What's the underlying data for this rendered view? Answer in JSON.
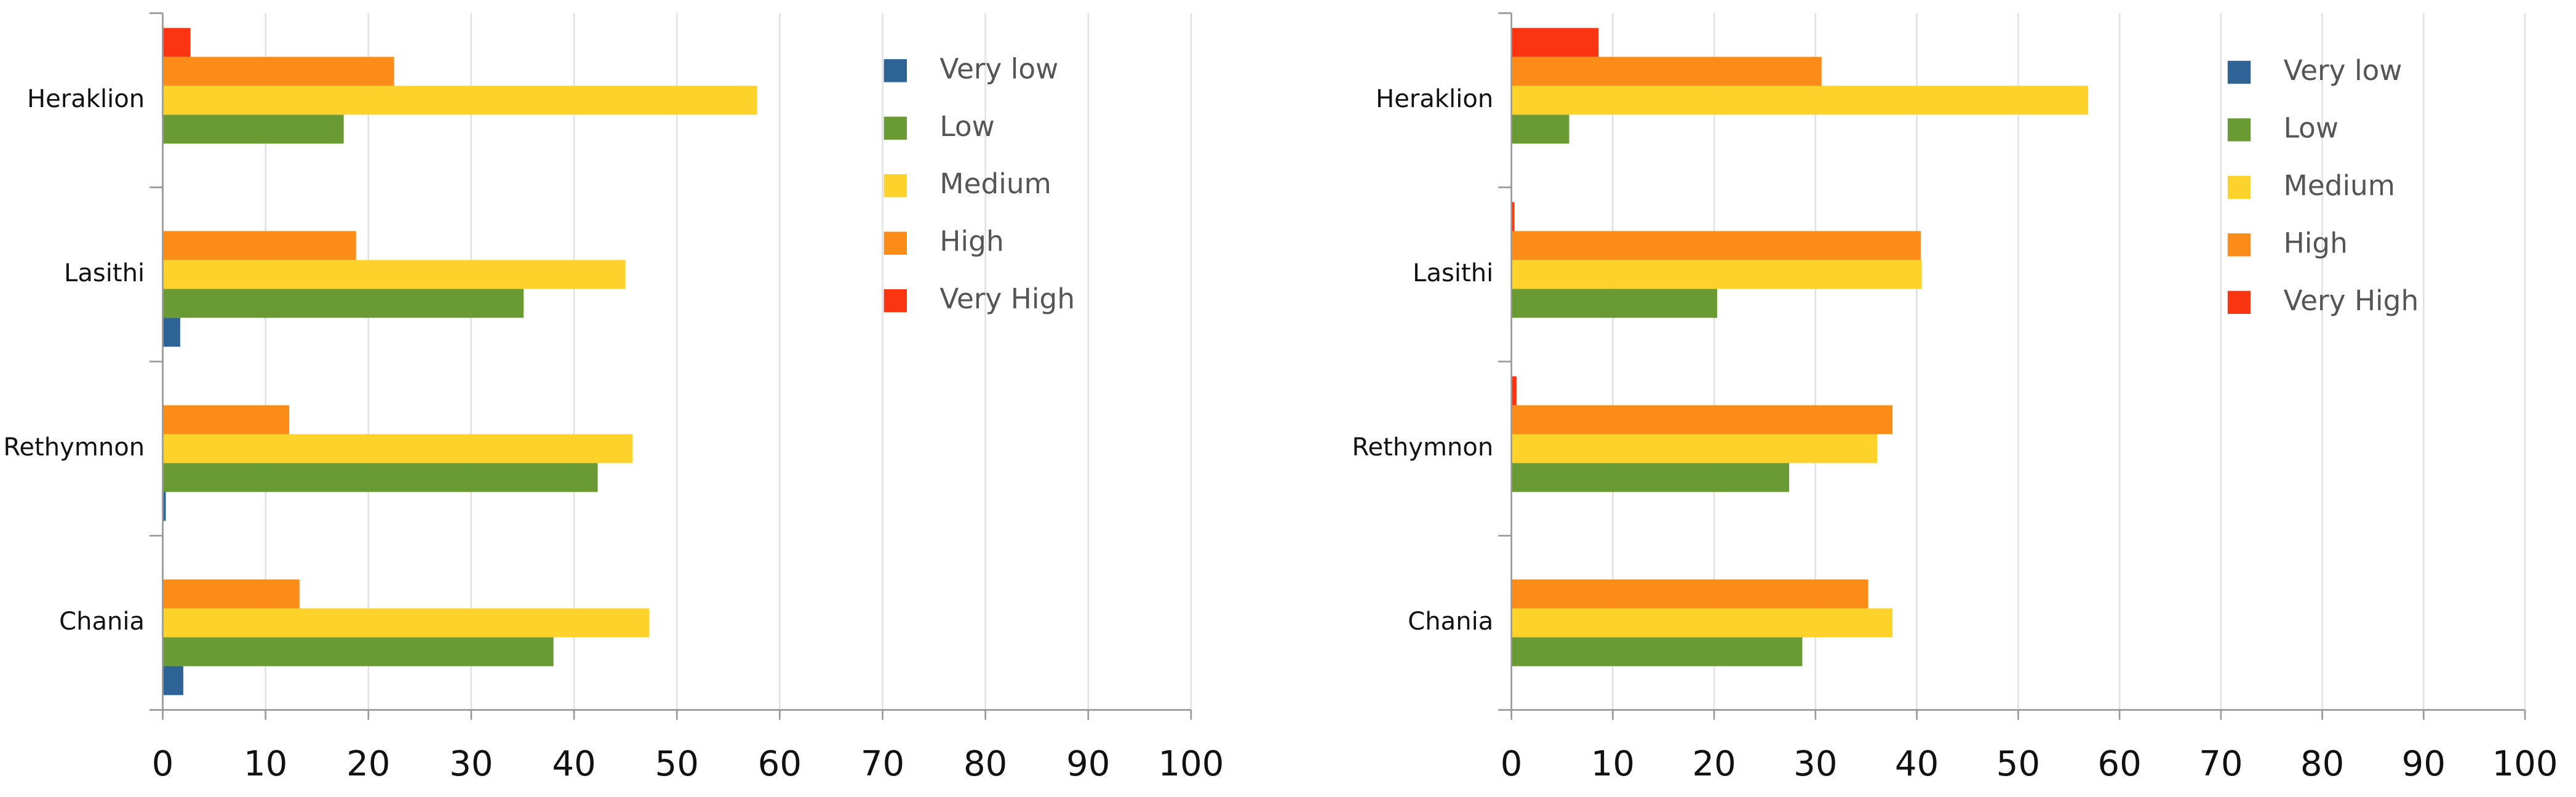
{
  "chart_data": [
    {
      "type": "bar",
      "orientation": "horizontal",
      "categories": [
        "Heraklion",
        "Lasithi",
        "Rethymnon",
        "Chania"
      ],
      "series": [
        {
          "name": "Very low",
          "color": "#2e6396",
          "values": [
            0,
            1.7,
            0.3,
            2
          ]
        },
        {
          "name": "Low",
          "color": "#6a9a34",
          "values": [
            17.6,
            35.1,
            42.3,
            38
          ]
        },
        {
          "name": "Medium",
          "color": "#fdd22a",
          "values": [
            57.8,
            45,
            45.7,
            47.3
          ]
        },
        {
          "name": "High",
          "color": "#fb8c18",
          "values": [
            22.5,
            18.8,
            12.3,
            13.3
          ]
        },
        {
          "name": "Very High",
          "color": "#fb3512",
          "values": [
            2.7,
            0,
            0,
            0
          ]
        }
      ],
      "xlim": [
        0,
        100
      ],
      "xticks": [
        0,
        10,
        20,
        30,
        40,
        50,
        60,
        70,
        80,
        90,
        100
      ],
      "grid": true,
      "legend": "upper right"
    },
    {
      "type": "bar",
      "orientation": "horizontal",
      "categories": [
        "Heraklion",
        "Lasithi",
        "Rethymnon",
        "Chania"
      ],
      "series": [
        {
          "name": "Very low",
          "color": "#2e6396",
          "values": [
            0,
            0,
            0,
            0
          ]
        },
        {
          "name": "Low",
          "color": "#6a9a34",
          "values": [
            5.7,
            20.3,
            27.4,
            28.7
          ]
        },
        {
          "name": "Medium",
          "color": "#fdd22a",
          "values": [
            56.9,
            40.5,
            36.1,
            37.6
          ]
        },
        {
          "name": "High",
          "color": "#fb8c18",
          "values": [
            30.6,
            40.4,
            37.6,
            35.2
          ]
        },
        {
          "name": "Very High",
          "color": "#fb3512",
          "values": [
            8.6,
            0.3,
            0.5,
            0
          ]
        }
      ],
      "xlim": [
        0,
        100
      ],
      "xticks": [
        0,
        10,
        20,
        30,
        40,
        50,
        60,
        70,
        80,
        90,
        100
      ],
      "grid": true,
      "legend": "upper right"
    }
  ]
}
